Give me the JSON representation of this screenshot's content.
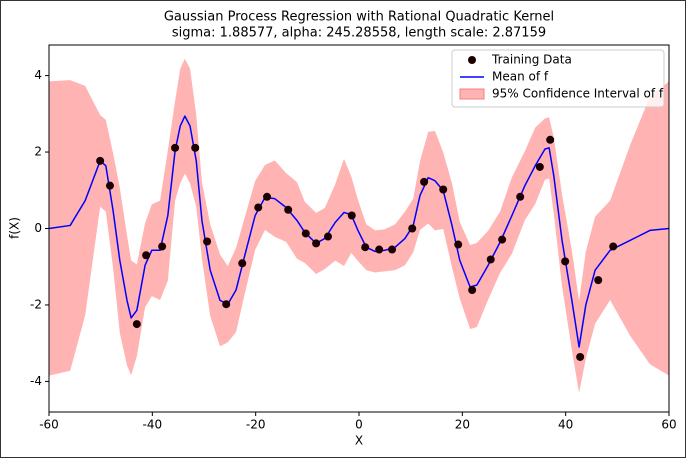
{
  "chart_data": {
    "type": "line",
    "title": "Gaussian Process Regression with Rational Quadratic Kernel",
    "subtitle": "sigma: 1.88577, alpha: 245.28558, length scale: 2.87159",
    "x_label": "X",
    "y_label": "f(X)",
    "xlim": [
      -60,
      60
    ],
    "ylim": [
      -4.8,
      4.8
    ],
    "xticks": [
      -60,
      -40,
      -20,
      0,
      20,
      40,
      60
    ],
    "yticks": [
      -4,
      -2,
      0,
      2,
      4
    ],
    "legend": "upper right",
    "series": [
      {
        "name": "Training Data",
        "type": "scatter",
        "color": "#1a0000",
        "x": [
          -50.1,
          -48.2,
          -43.0,
          -41.2,
          -38.1,
          -35.6,
          -31.7,
          -29.4,
          -25.7,
          -22.6,
          -19.5,
          -17.8,
          -13.7,
          -10.3,
          -8.3,
          -6.0,
          -1.4,
          1.2,
          3.9,
          6.4,
          10.3,
          12.6,
          16.3,
          19.2,
          21.9,
          25.5,
          27.7,
          31.2,
          35.0,
          37.0,
          39.9,
          42.8,
          46.3,
          49.2
        ],
        "values": [
          1.77,
          1.12,
          -2.5,
          -0.7,
          -0.47,
          2.11,
          2.11,
          -0.34,
          -1.98,
          -0.91,
          0.55,
          0.83,
          0.49,
          -0.13,
          -0.39,
          -0.21,
          0.34,
          -0.49,
          -0.55,
          -0.55,
          0.0,
          1.22,
          1.02,
          -0.42,
          -1.61,
          -0.81,
          -0.29,
          0.83,
          1.61,
          2.32,
          -0.86,
          -3.36,
          -1.35,
          -0.47
        ]
      },
      {
        "name": "Mean of f",
        "type": "line",
        "color": "#0000ff",
        "x": [
          -60,
          -55.9,
          -53,
          -50.1,
          -49,
          -47.6,
          -46.3,
          -44.9,
          -44.1,
          -43,
          -41.4,
          -40.1,
          -38.5,
          -37,
          -35.6,
          -34.6,
          -33.7,
          -32.7,
          -31.5,
          -30.4,
          -28.8,
          -26.9,
          -25.4,
          -23.8,
          -22.1,
          -20.1,
          -18.2,
          -16.3,
          -14.1,
          -12,
          -10.5,
          -8.3,
          -6.6,
          -4.6,
          -2.9,
          -1.5,
          -0.2,
          1.4,
          3.1,
          5,
          7,
          8.9,
          10.5,
          11.8,
          13.4,
          14.7,
          16.3,
          18,
          19.5,
          21.5,
          22.8,
          25,
          27.3,
          29.6,
          32.1,
          34.1,
          36,
          36.8,
          37.7,
          39.3,
          41.2,
          42.6,
          43.9,
          45.7,
          48.6,
          52.5,
          56.3,
          60
        ],
        "values": [
          0,
          0.08,
          0.73,
          1.77,
          1.64,
          0.47,
          -0.83,
          -1.88,
          -2.34,
          -2.14,
          -0.96,
          -0.57,
          -0.57,
          0.34,
          2.03,
          2.68,
          2.94,
          2.68,
          1.77,
          0.21,
          -1.09,
          -1.88,
          -1.98,
          -1.61,
          -0.7,
          0.34,
          0.81,
          0.78,
          0.55,
          0.21,
          -0.1,
          -0.39,
          -0.26,
          0.16,
          0.42,
          0.36,
          -0.05,
          -0.49,
          -0.6,
          -0.57,
          -0.49,
          -0.26,
          0.08,
          0.86,
          1.33,
          1.25,
          0.99,
          0.08,
          -0.83,
          -1.53,
          -1.48,
          -0.96,
          -0.36,
          0.34,
          1.12,
          1.64,
          2.08,
          2.11,
          1.38,
          -0.31,
          -1.88,
          -3.1,
          -2.0,
          -1.09,
          -0.57,
          -0.31,
          -0.05,
          0
        ]
      },
      {
        "name": "95% Confidence Interval of f",
        "type": "band",
        "color": "#ffb3b3",
        "x": [
          -60,
          -55.9,
          -53,
          -50.1,
          -49,
          -47.6,
          -46.3,
          -44.9,
          -44.1,
          -43,
          -41.4,
          -40.1,
          -38.5,
          -37,
          -35.6,
          -34.6,
          -33.7,
          -32.7,
          -31.5,
          -30.4,
          -28.8,
          -26.9,
          -25.4,
          -23.8,
          -22.1,
          -20.1,
          -18.2,
          -16.3,
          -14.1,
          -12,
          -10.5,
          -8.3,
          -6.6,
          -4.6,
          -2.9,
          -1.5,
          -0.2,
          1.4,
          3.1,
          5,
          7,
          8.9,
          10.5,
          11.8,
          13.4,
          14.7,
          16.3,
          18,
          19.5,
          21.5,
          22.8,
          25,
          27.3,
          29.6,
          32.1,
          34.1,
          36,
          36.8,
          37.7,
          39.3,
          41.2,
          42.6,
          43.9,
          45.7,
          48.6,
          52.5,
          56.3,
          60
        ],
        "upper": [
          3.85,
          3.88,
          3.73,
          2.97,
          2.84,
          1.97,
          1.07,
          -0.18,
          -0.84,
          -0.94,
          0.14,
          0.63,
          0.73,
          2.04,
          3.33,
          4.18,
          4.44,
          4.18,
          2.97,
          1.21,
          0.11,
          -0.68,
          -0.98,
          -0.51,
          0.3,
          1.24,
          1.66,
          1.78,
          1.45,
          1.21,
          0.7,
          0.41,
          0.54,
          1.16,
          1.82,
          1.36,
          0.75,
          0.11,
          -0.05,
          -0.02,
          0.11,
          0.44,
          0.78,
          1.76,
          2.53,
          2.55,
          1.99,
          1.18,
          0.17,
          -0.43,
          -0.38,
          -0.06,
          0.44,
          1.34,
          2.02,
          2.64,
          2.88,
          2.91,
          2.38,
          0.89,
          -0.58,
          -1.9,
          -0.6,
          0.31,
          0.73,
          2.19,
          3.45,
          3.85
        ],
        "lower": [
          -3.85,
          -3.72,
          -2.27,
          0.57,
          0.44,
          -1.03,
          -2.73,
          -3.58,
          -3.84,
          -3.34,
          -2.06,
          -1.77,
          -1.87,
          -1.36,
          0.73,
          1.18,
          1.44,
          1.18,
          0.57,
          -0.79,
          -2.29,
          -3.08,
          -2.98,
          -2.71,
          -1.7,
          -0.56,
          -0.04,
          -0.22,
          -0.35,
          -0.79,
          -0.9,
          -1.19,
          -1.06,
          -0.84,
          -0.98,
          -0.64,
          -0.85,
          -1.09,
          -1.15,
          -1.12,
          -1.09,
          -0.96,
          -0.62,
          -0.04,
          0.13,
          -0.05,
          -0.01,
          -1.02,
          -1.83,
          -2.63,
          -2.58,
          -1.86,
          -1.16,
          -0.66,
          0.22,
          0.64,
          1.28,
          1.31,
          0.38,
          -1.51,
          -3.18,
          -4.3,
          -3.4,
          -2.49,
          -1.87,
          -2.81,
          -3.55,
          -3.85
        ]
      }
    ]
  }
}
